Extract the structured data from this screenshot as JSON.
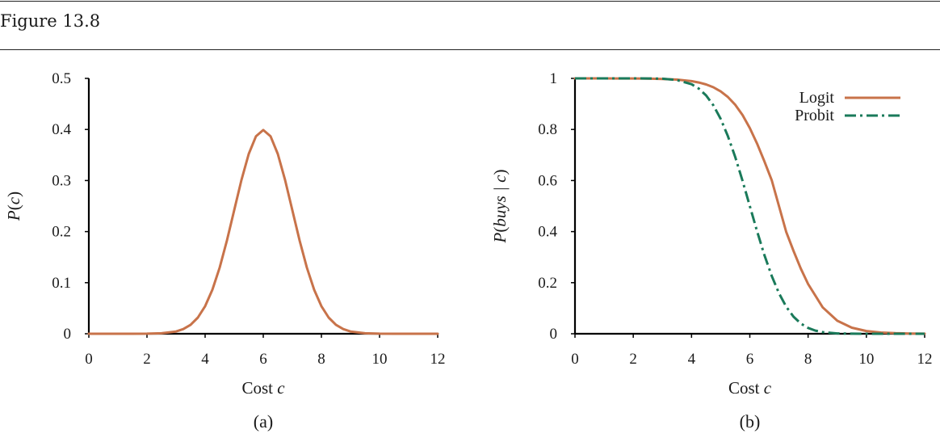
{
  "figure": {
    "title": "Figure 13.8"
  },
  "colors": {
    "logit": "#c8734a",
    "probit": "#1a7a5a",
    "axis": "#000000"
  },
  "chart_data": [
    {
      "type": "line",
      "panel_label": "(a)",
      "xlabel": "Cost c",
      "xlabel_main": "Cost ",
      "xlabel_var": "c",
      "ylabel": "P(c)",
      "ylabel_parts": [
        "P",
        "(",
        "c",
        ")"
      ],
      "xlim": [
        0,
        12
      ],
      "ylim": [
        0,
        0.5
      ],
      "xticks": [
        0,
        2,
        4,
        6,
        8,
        10,
        12
      ],
      "yticks": [
        0,
        0.1,
        0.2,
        0.3,
        0.4,
        0.5
      ],
      "grid": false,
      "series": [
        {
          "color": "#c8734a",
          "style": "solid",
          "x": [
            0,
            0.5,
            1,
            1.5,
            2,
            2.5,
            3,
            3.25,
            3.5,
            3.75,
            4,
            4.25,
            4.5,
            4.75,
            5,
            5.25,
            5.5,
            5.75,
            6,
            6.25,
            6.5,
            6.75,
            7,
            7.25,
            7.5,
            7.75,
            8,
            8.25,
            8.5,
            8.75,
            9,
            9.5,
            10,
            10.5,
            11,
            11.5,
            12
          ],
          "y": [
            0,
            0,
            0,
            0,
            0.0001,
            0.0009,
            0.0044,
            0.0091,
            0.0175,
            0.0317,
            0.054,
            0.0863,
            0.1295,
            0.1826,
            0.242,
            0.3011,
            0.3521,
            0.3867,
            0.3989,
            0.3867,
            0.3521,
            0.3011,
            0.242,
            0.1826,
            0.1295,
            0.0863,
            0.054,
            0.0317,
            0.0175,
            0.0091,
            0.0044,
            0.0009,
            0.0001,
            0,
            0,
            0,
            0
          ]
        }
      ]
    },
    {
      "type": "line",
      "panel_label": "(b)",
      "xlabel": "Cost c",
      "xlabel_main": "Cost ",
      "xlabel_var": "c",
      "ylabel": "P(buys | c)",
      "ylabel_parts": [
        "P",
        "(",
        "buys | c",
        ")"
      ],
      "xlim": [
        0,
        12
      ],
      "ylim": [
        0,
        1
      ],
      "xticks": [
        0,
        2,
        4,
        6,
        8,
        10,
        12
      ],
      "yticks": [
        0,
        0.2,
        0.4,
        0.6,
        0.8,
        1
      ],
      "grid": false,
      "legend_position": "top-right",
      "series": [
        {
          "name": "Logit",
          "color": "#c8734a",
          "style": "solid",
          "x": [
            0,
            0.5,
            1,
            1.5,
            2,
            2.5,
            3,
            3.5,
            4,
            4.25,
            4.5,
            4.75,
            5,
            5.25,
            5.5,
            5.75,
            6,
            6.25,
            6.5,
            6.75,
            7,
            7.25,
            7.5,
            7.75,
            8,
            8.5,
            9,
            9.5,
            10,
            10.5,
            11,
            11.5,
            12
          ],
          "y": [
            1,
            1,
            0.9999,
            0.9998,
            0.9996,
            0.9991,
            0.9979,
            0.9953,
            0.9893,
            0.984,
            0.9763,
            0.9651,
            0.9492,
            0.927,
            0.8966,
            0.8563,
            0.8054,
            0.7445,
            0.6754,
            0.6015,
            0.5,
            0.3985,
            0.3246,
            0.2555,
            0.1946,
            0.1034,
            0.0508,
            0.0237,
            0.0107,
            0.0047,
            0.0021,
            0.0009,
            0.0004
          ]
        },
        {
          "name": "Probit",
          "color": "#1a7a5a",
          "style": "dashdot",
          "x": [
            0,
            0.5,
            1,
            1.5,
            2,
            2.5,
            3,
            3.5,
            4,
            4.25,
            4.5,
            4.75,
            5,
            5.25,
            5.5,
            5.75,
            6,
            6.25,
            6.5,
            6.75,
            7,
            7.25,
            7.5,
            7.75,
            8,
            8.25,
            8.5,
            9,
            9.5,
            10,
            11,
            12
          ],
          "y": [
            1,
            1,
            1,
            1,
            1,
            0.9998,
            0.9987,
            0.9938,
            0.9772,
            0.9599,
            0.9332,
            0.8944,
            0.8413,
            0.7734,
            0.6915,
            0.5987,
            0.5,
            0.4013,
            0.3085,
            0.2266,
            0.1587,
            0.1056,
            0.0668,
            0.0401,
            0.0228,
            0.0122,
            0.0062,
            0.0013,
            0.0002,
            0,
            0,
            0
          ]
        }
      ]
    }
  ]
}
